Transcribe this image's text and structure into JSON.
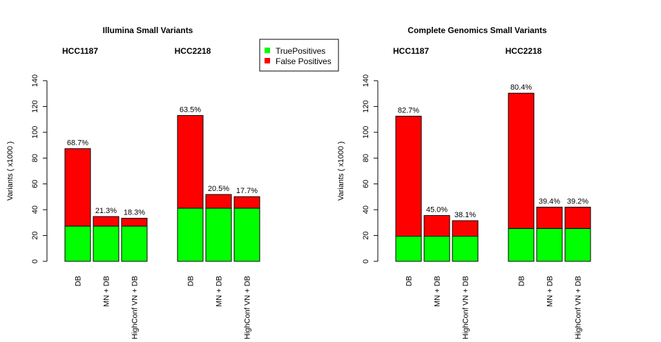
{
  "colors": {
    "true_positives": "#00ff00",
    "false_positives": "#ff0000",
    "border": "#000000"
  },
  "legend": {
    "items": [
      {
        "label": "TruePositives",
        "color": "#00ff00"
      },
      {
        "label": "False Positives",
        "color": "#ff0000"
      }
    ],
    "placement": "top, between panels"
  },
  "chart_data": [
    {
      "type": "bar",
      "stacked": true,
      "title": "Illumina Small Variants",
      "ylabel": "Variants ( x1000 )",
      "ylim": [
        0,
        140
      ],
      "yticks": [
        0,
        20,
        40,
        60,
        80,
        100,
        120,
        140
      ],
      "groups": [
        {
          "name": "HCC1187",
          "categories": [
            "DB",
            "MN + DB",
            "HighConf VN + DB"
          ],
          "series": [
            {
              "name": "TruePositives",
              "values": [
                27.3,
                27.3,
                27.3
              ]
            },
            {
              "name": "False Positives",
              "values": [
                60.0,
                7.4,
                6.1
              ]
            }
          ],
          "annotations": [
            "68.7%",
            "21.3%",
            "18.3%"
          ]
        },
        {
          "name": "HCC2218",
          "categories": [
            "DB",
            "MN + DB",
            "HighConf VN + DB"
          ],
          "series": [
            {
              "name": "TruePositives",
              "values": [
                41.2,
                41.2,
                41.2
              ]
            },
            {
              "name": "False Positives",
              "values": [
                71.8,
                10.6,
                8.9
              ]
            }
          ],
          "annotations": [
            "63.5%",
            "20.5%",
            "17.7%"
          ]
        }
      ]
    },
    {
      "type": "bar",
      "stacked": true,
      "title": "Complete Genomics  Small Variants",
      "ylabel": "Variants ( x1000 )",
      "ylim": [
        0,
        140
      ],
      "yticks": [
        0,
        20,
        40,
        60,
        80,
        100,
        120,
        140
      ],
      "groups": [
        {
          "name": "HCC1187",
          "categories": [
            "DB",
            "MN + DB",
            "HighConf VN + DB"
          ],
          "series": [
            {
              "name": "TruePositives",
              "values": [
                19.5,
                19.5,
                19.5
              ]
            },
            {
              "name": "False Positives",
              "values": [
                93.0,
                16.0,
                12.0
              ]
            }
          ],
          "annotations": [
            "82.7%",
            "45.0%",
            "38.1%"
          ]
        },
        {
          "name": "HCC2218",
          "categories": [
            "DB",
            "MN + DB",
            "HighConf VN + DB"
          ],
          "series": [
            {
              "name": "TruePositives",
              "values": [
                25.5,
                25.5,
                25.5
              ]
            },
            {
              "name": "False Positives",
              "values": [
                104.8,
                16.5,
                16.5
              ]
            }
          ],
          "annotations": [
            "80.4%",
            "39.4%",
            "39.2%"
          ]
        }
      ]
    }
  ]
}
